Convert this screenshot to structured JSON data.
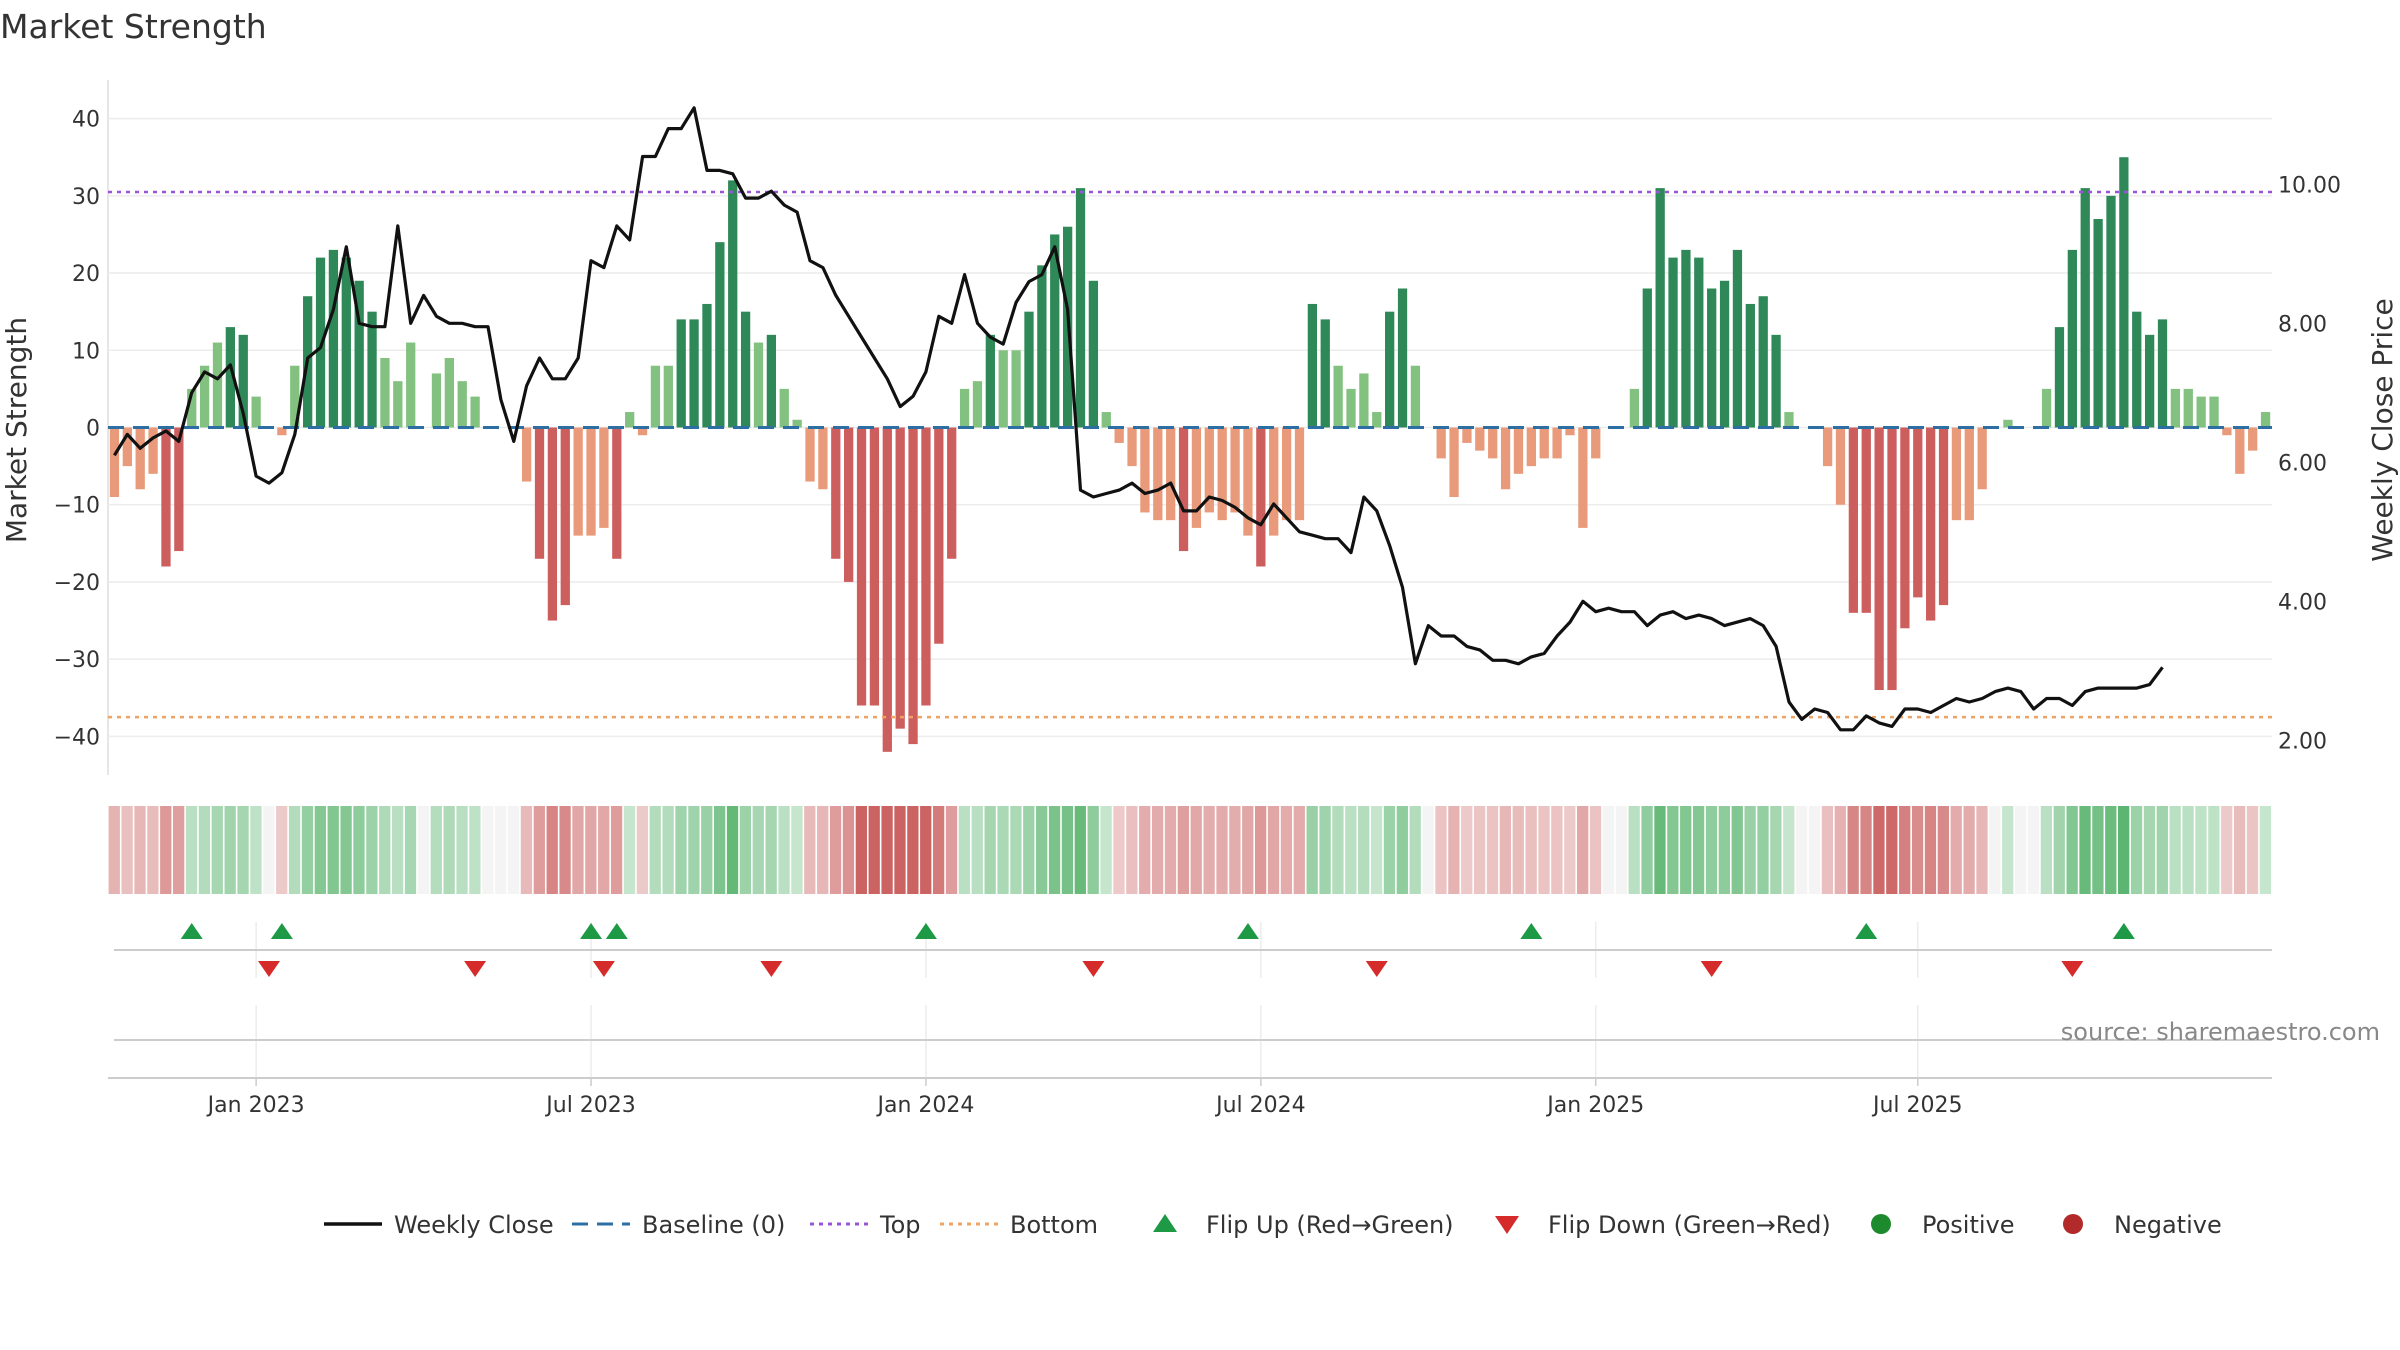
{
  "chart_data": {
    "type": "bar",
    "title": "Market Strength",
    "ylabel": "Market Strength",
    "y2label": "Weekly Close Price",
    "ylim": [
      -45,
      45
    ],
    "y2lim": [
      1.5,
      11.5
    ],
    "yticks": [
      40,
      30,
      20,
      10,
      0,
      -10,
      -20,
      -30,
      -40
    ],
    "yticklabels": [
      "40",
      "30",
      "20",
      "10",
      "0",
      "−10",
      "−20",
      "−30",
      "−40"
    ],
    "y2ticks": [
      10,
      8,
      6,
      4,
      2
    ],
    "y2ticklabels": [
      "10.00",
      "8.00",
      "6.00",
      "4.00",
      "2.00"
    ],
    "xticks": [
      11,
      37,
      63,
      89,
      115,
      140
    ],
    "xticklabels": [
      "Jan 2023",
      "Jul 2023",
      "Jan 2024",
      "Jul 2024",
      "Jan 2025",
      "Jul 2025"
    ],
    "top_line": 30.5,
    "bottom_line": -37.5,
    "strength": [
      -9,
      -5,
      -8,
      -6,
      -18,
      -16,
      5,
      8,
      11,
      13,
      12,
      4,
      0,
      -1,
      8,
      17,
      22,
      23,
      22,
      19,
      15,
      9,
      6,
      11,
      0,
      7,
      9,
      6,
      4,
      0,
      0,
      0,
      -7,
      -17,
      -25,
      -23,
      -14,
      -14,
      -13,
      -17,
      2,
      -1,
      8,
      8,
      14,
      14,
      16,
      24,
      32,
      15,
      11,
      12,
      5,
      1,
      -7,
      -8,
      -17,
      -20,
      -36,
      -36,
      -42,
      -39,
      -41,
      -36,
      -28,
      -17,
      5,
      6,
      12,
      10,
      10,
      15,
      21,
      25,
      26,
      31,
      19,
      2,
      -2,
      -5,
      -11,
      -12,
      -12,
      -16,
      -13,
      -11,
      -12,
      -11,
      -14,
      -18,
      -14,
      -12,
      -12,
      16,
      14,
      8,
      5,
      7,
      2,
      15,
      18,
      8,
      0,
      -4,
      -9,
      -2,
      -3,
      -4,
      -8,
      -6,
      -5,
      -4,
      -4,
      -1,
      -13,
      -4,
      0,
      0,
      5,
      18,
      31,
      22,
      23,
      22,
      18,
      19,
      23,
      16,
      17,
      12,
      2,
      0,
      0,
      -5,
      -10,
      -24,
      -24,
      -34,
      -34,
      -26,
      -22,
      -25,
      -23,
      -12,
      -12,
      -8,
      0,
      1,
      0,
      0,
      5,
      13,
      23,
      31,
      27,
      30,
      35,
      15,
      12,
      14,
      5,
      5,
      4,
      4,
      -1,
      -6,
      -3,
      2
    ],
    "close": [
      6.1,
      6.4,
      6.2,
      6.35,
      6.45,
      6.3,
      7.0,
      7.3,
      7.2,
      7.4,
      6.7,
      5.8,
      5.7,
      5.85,
      6.4,
      7.5,
      7.65,
      8.2,
      9.1,
      8.0,
      7.95,
      7.95,
      9.4,
      8.0,
      8.4,
      8.1,
      8.0,
      8.0,
      7.95,
      7.95,
      6.9,
      6.3,
      7.1,
      7.5,
      7.2,
      7.2,
      7.5,
      8.9,
      8.8,
      9.4,
      9.2,
      10.4,
      10.4,
      10.8,
      10.8,
      11.1,
      10.2,
      10.2,
      10.15,
      9.8,
      9.8,
      9.9,
      9.7,
      9.6,
      8.9,
      8.8,
      8.4,
      8.1,
      7.8,
      7.5,
      7.2,
      6.8,
      6.95,
      7.3,
      8.1,
      8.0,
      8.7,
      8.0,
      7.8,
      7.7,
      8.3,
      8.6,
      8.7,
      9.1,
      8.2,
      5.6,
      5.5,
      5.55,
      5.6,
      5.7,
      5.55,
      5.6,
      5.7,
      5.3,
      5.3,
      5.5,
      5.45,
      5.35,
      5.2,
      5.1,
      5.4,
      5.2,
      5.0,
      4.95,
      4.9,
      4.9,
      4.7,
      5.5,
      5.3,
      4.8,
      4.2,
      3.1,
      3.65,
      3.5,
      3.5,
      3.35,
      3.3,
      3.15,
      3.15,
      3.1,
      3.2,
      3.25,
      3.5,
      3.7,
      4.0,
      3.85,
      3.9,
      3.85,
      3.85,
      3.65,
      3.8,
      3.85,
      3.75,
      3.8,
      3.75,
      3.65,
      3.7,
      3.75,
      3.65,
      3.35,
      2.55,
      2.3,
      2.45,
      2.4,
      2.15,
      2.15,
      2.35,
      2.25,
      2.2,
      2.45,
      2.45,
      2.4,
      2.5,
      2.6,
      2.55,
      2.6,
      2.7,
      2.75,
      2.7,
      2.45,
      2.6,
      2.6,
      2.5,
      2.7,
      2.75,
      2.75,
      2.75,
      2.75,
      2.8,
      3.05
    ],
    "flip_up_idx": [
      6,
      13,
      37,
      39,
      63,
      88,
      110,
      136,
      156
    ],
    "flip_down_idx": [
      12,
      28,
      38,
      51,
      76,
      98,
      124,
      152
    ],
    "source": "source: sharemaestro.com",
    "legend": [
      {
        "label": "Weekly Close",
        "kind": "line",
        "color": "#111111"
      },
      {
        "label": "Baseline (0)",
        "kind": "dash",
        "color": "#2d6fa3"
      },
      {
        "label": "Top",
        "kind": "dot",
        "color": "#9a55d6"
      },
      {
        "label": "Bottom",
        "kind": "dot",
        "color": "#eda364"
      },
      {
        "label": "Flip Up (Red→Green)",
        "kind": "up",
        "color": "#1e9a46"
      },
      {
        "label": "Flip Down (Green→Red)",
        "kind": "down",
        "color": "#d62b2b"
      },
      {
        "label": "Positive",
        "kind": "circle",
        "color": "#1e8a2e"
      },
      {
        "label": "Negative",
        "kind": "circle",
        "color": "#b22a2a"
      }
    ]
  },
  "colors": {
    "strong_green": "#2e8857",
    "light_green": "#82c17f",
    "strong_red": "#cd5e5e",
    "light_red": "#e89a7a",
    "close_line": "#111111",
    "baseline": "#2d6fa3",
    "top_line": "#9a55d6",
    "bottom_line": "#eda364"
  }
}
